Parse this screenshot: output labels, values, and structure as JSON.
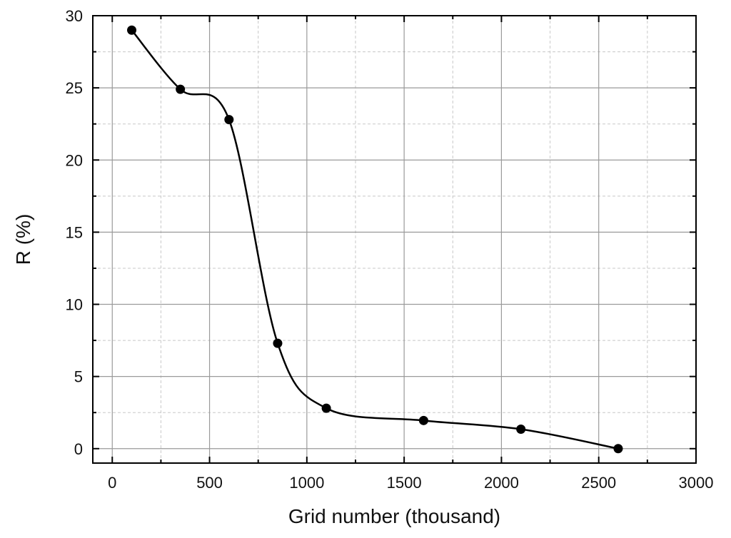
{
  "chart_data": {
    "type": "line",
    "title": "",
    "xlabel": "Grid number (thousand)",
    "ylabel": "R (%)",
    "xlim": [
      -100,
      3000
    ],
    "ylim": [
      -1,
      30
    ],
    "x_ticks": [
      0,
      500,
      1000,
      1500,
      2000,
      2500,
      3000
    ],
    "y_ticks": [
      0,
      5,
      10,
      15,
      20,
      25,
      30
    ],
    "x_minor_ticks": [
      250,
      750,
      1250,
      1750,
      2250,
      2750
    ],
    "y_minor_ticks": [
      2.5,
      7.5,
      12.5,
      17.5,
      22.5,
      27.5
    ],
    "grid": true,
    "line_style": "smooth",
    "marker": "circle",
    "colors": {
      "line": "#000000",
      "marker": "#000000",
      "grid_major": "#9a9a9a",
      "grid_minor": "#c8c8c8",
      "frame": "#000000"
    },
    "series": [
      {
        "x": [
          100,
          350,
          600,
          850,
          1100,
          1600,
          2100,
          2600
        ],
        "y": [
          29.0,
          24.9,
          22.8,
          7.3,
          2.8,
          1.95,
          1.35,
          0.0
        ]
      }
    ]
  }
}
